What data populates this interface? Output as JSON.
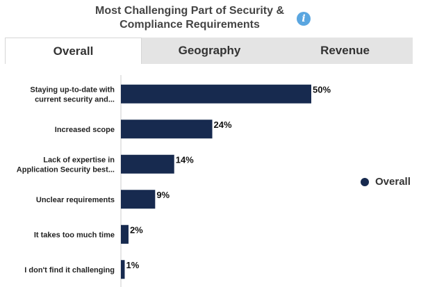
{
  "header": {
    "title_line1": "Most Challenging Part of Security &",
    "title_line2": "Compliance Requirements",
    "info_icon": "info-icon",
    "info_glyph": "i"
  },
  "tabs": [
    {
      "label": "Overall",
      "active": true
    },
    {
      "label": "Geography",
      "active": false
    },
    {
      "label": "Revenue",
      "active": false
    }
  ],
  "chart_data": {
    "type": "bar",
    "orientation": "horizontal",
    "categories": [
      [
        "Staying up-to-date with",
        "current security and..."
      ],
      [
        "Increased scope"
      ],
      [
        "Lack of expertise in",
        "Application Security best..."
      ],
      [
        "Unclear requirements"
      ],
      [
        "It takes too much time"
      ],
      [
        "I don't find it challenging"
      ]
    ],
    "series": [
      {
        "name": "Overall",
        "values": [
          50,
          24,
          14,
          9,
          2,
          1
        ],
        "color": "#172a4f"
      }
    ],
    "value_suffix": "%",
    "xlim": [
      0,
      75
    ],
    "grid": false,
    "legend": "right"
  }
}
